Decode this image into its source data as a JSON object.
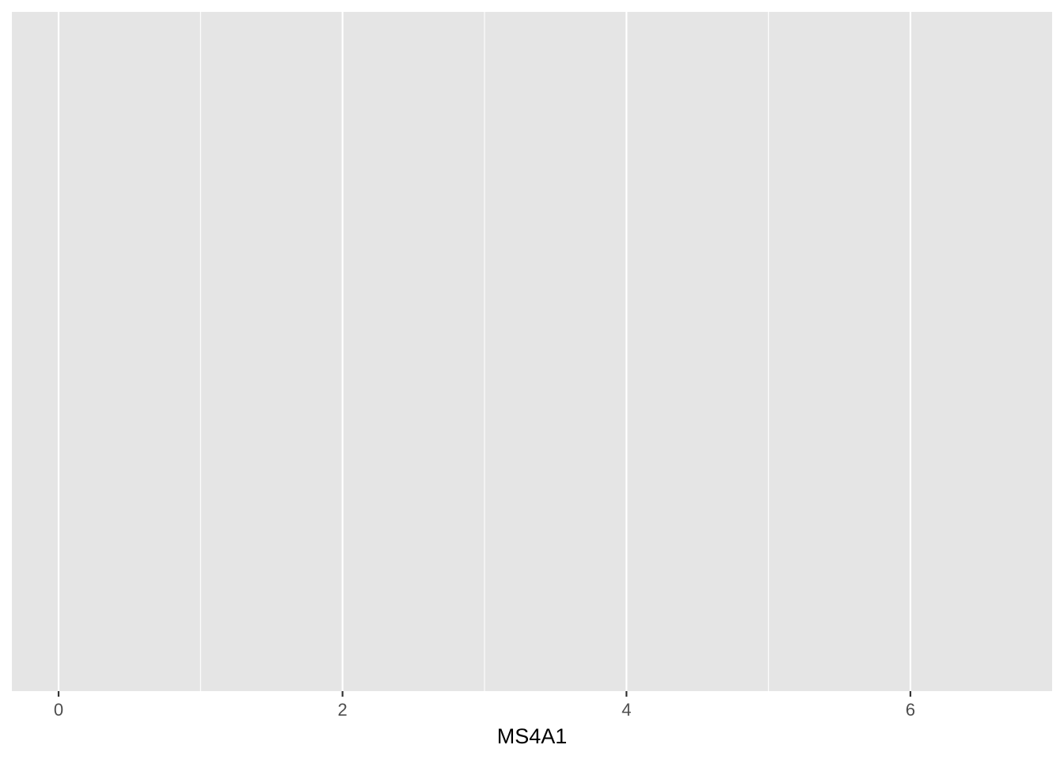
{
  "chart_data": {
    "type": "scatter",
    "title": "",
    "xlabel": "MS4A1",
    "ylabel": "",
    "xlim": [
      -0.33,
      7.0
    ],
    "x_ticks": [
      0,
      2,
      4,
      6
    ],
    "x_tick_labels": [
      "0",
      "2",
      "4",
      "6"
    ],
    "x_minor_breaks": [
      1,
      3,
      5
    ],
    "y_ticks": [],
    "grid": true,
    "legend": "none",
    "series": []
  },
  "colors": {
    "panel_background": "#E5E5E5",
    "grid_line": "#FFFFFF",
    "tick_mark": "#333333",
    "tick_label": "#4D4D4D",
    "axis_title": "#000000"
  }
}
